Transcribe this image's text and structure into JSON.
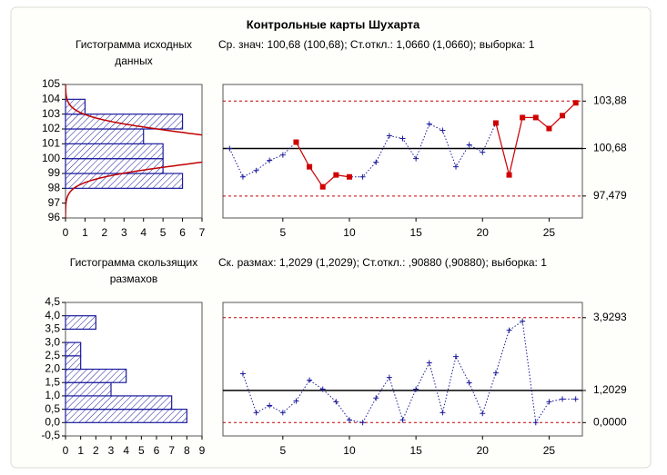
{
  "title": "Контрольные карты Шухарта",
  "chart_data": [
    {
      "type": "histogram",
      "orientation": "horizontal",
      "title_lines": [
        "Гистограмма исходных",
        "данных"
      ],
      "bins": [
        98,
        99,
        100,
        101,
        102,
        103,
        104
      ],
      "counts": [
        6,
        5,
        5,
        4,
        6,
        1
      ],
      "color": "#1a1a9c",
      "ylim": [
        96,
        105
      ],
      "yticks": [
        96,
        97,
        98,
        99,
        100,
        101,
        102,
        103,
        104,
        105
      ],
      "xlim": [
        0,
        7
      ],
      "xticks": [
        0,
        1,
        2,
        3,
        4,
        5,
        6,
        7
      ],
      "normal_fit": {
        "mean": 100.68,
        "sd": 1.066,
        "color": "#c00000"
      }
    },
    {
      "type": "line",
      "subtitle": "Ср. знач: 100,68 (100,68); Ст.откл.: 1,0660 (1,0660); выборка: 1",
      "x": [
        1,
        2,
        3,
        4,
        5,
        6,
        7,
        8,
        9,
        10,
        11,
        12,
        13,
        14,
        15,
        16,
        17,
        18,
        19,
        20,
        21,
        22,
        23,
        24,
        25,
        26,
        27
      ],
      "values": [
        100.68,
        98.77,
        99.2,
        99.88,
        100.25,
        101.11,
        99.45,
        98.1,
        98.9,
        98.77,
        98.77,
        99.76,
        101.54,
        101.36,
        100.0,
        102.34,
        101.91,
        99.45,
        100.93,
        100.43,
        102.4,
        98.9,
        102.77,
        102.77,
        102.03,
        102.9,
        103.76
      ],
      "color": "#1a1a9c",
      "flag_color": "#d00000",
      "flagged_x": [
        6,
        7,
        8,
        9,
        10,
        21,
        22,
        23,
        24,
        25,
        26,
        27
      ],
      "xlim": [
        0.5,
        27.5
      ],
      "xticks": [
        5,
        10,
        15,
        20,
        25
      ],
      "ylim": [
        96,
        105
      ],
      "control_lines": [
        {
          "value": 103.88,
          "label": "103,88",
          "style": "dashed",
          "color": "#c00000"
        },
        {
          "value": 100.68,
          "label": "100,68",
          "style": "solid",
          "color": "#000000"
        },
        {
          "value": 97.479,
          "label": "97,479",
          "style": "dashed",
          "color": "#c00000"
        }
      ]
    },
    {
      "type": "histogram",
      "orientation": "horizontal",
      "title_lines": [
        "Гистограмма скользящих",
        "размахов"
      ],
      "bins": [
        0,
        0.5,
        1.0,
        1.5,
        2.0,
        2.5,
        3.0,
        3.5,
        4.0
      ],
      "counts": [
        8,
        7,
        3,
        4,
        1,
        1,
        0,
        2
      ],
      "color": "#1a1a9c",
      "ylim": [
        -0.5,
        4.5
      ],
      "yticks": [
        {
          "value": -0.5,
          "label": "-0,5"
        },
        {
          "value": 0,
          "label": "0,0"
        },
        {
          "value": 0.5,
          "label": "0,5"
        },
        {
          "value": 1.0,
          "label": "1,0"
        },
        {
          "value": 1.5,
          "label": "1,5"
        },
        {
          "value": 2.0,
          "label": "2,0"
        },
        {
          "value": 2.5,
          "label": "2,5"
        },
        {
          "value": 3.0,
          "label": "3,0"
        },
        {
          "value": 3.5,
          "label": "3,5"
        },
        {
          "value": 4.0,
          "label": "4,0"
        },
        {
          "value": 4.5,
          "label": "4,5"
        }
      ],
      "xlim": [
        0,
        9
      ],
      "xticks": [
        0,
        1,
        2,
        3,
        4,
        5,
        6,
        7,
        8,
        9
      ]
    },
    {
      "type": "line",
      "subtitle": "Ск. размах: 1,2029 (1,2029); Ст.откл.: ,90880 (,90880); выборка: 1",
      "x": [
        2,
        3,
        4,
        5,
        6,
        7,
        8,
        9,
        10,
        11,
        12,
        13,
        14,
        15,
        16,
        17,
        18,
        19,
        20,
        21,
        22,
        23,
        24,
        25,
        26,
        27
      ],
      "values": [
        1.83,
        0.37,
        0.64,
        0.37,
        0.81,
        1.59,
        1.25,
        0.78,
        0.1,
        0,
        0.92,
        1.69,
        0.1,
        1.25,
        2.24,
        0.37,
        2.47,
        1.49,
        0.34,
        1.86,
        3.46,
        3.8,
        0,
        0.78,
        0.88,
        0.88
      ],
      "color": "#1a1a9c",
      "flag_color": "#d00000",
      "flagged_x": [],
      "xlim": [
        0.5,
        27.5
      ],
      "xticks": [
        5,
        10,
        15,
        20,
        25
      ],
      "ylim": [
        -0.5,
        4.5
      ],
      "control_lines": [
        {
          "value": 3.9293,
          "label": "3,9293",
          "style": "dashed",
          "color": "#c00000"
        },
        {
          "value": 1.2029,
          "label": "1,2029",
          "style": "solid",
          "color": "#000000"
        },
        {
          "value": 0,
          "label": "0,0000",
          "style": "dashed",
          "color": "#c00000"
        }
      ]
    }
  ]
}
